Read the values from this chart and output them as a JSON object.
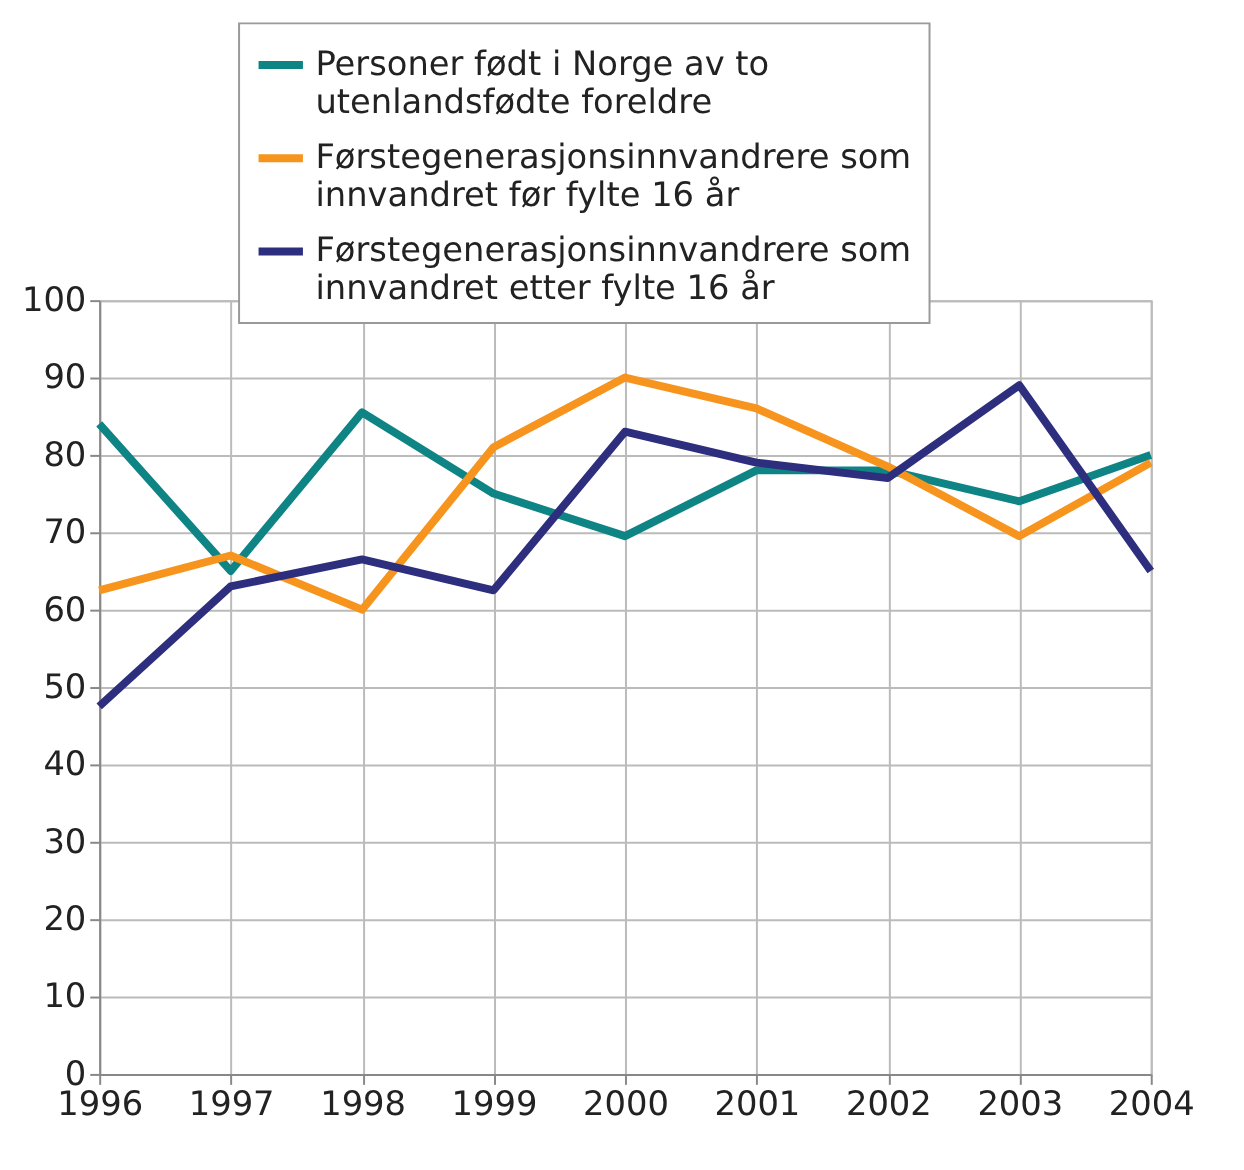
{
  "chart_data": {
    "type": "line",
    "x": [
      1996,
      1997,
      1998,
      1999,
      2000,
      2001,
      2002,
      2003,
      2004
    ],
    "series": [
      {
        "name": "Personer født i Norge av to utenlandsfødte foreldre",
        "color": "#0f8484",
        "values": [
          84,
          65,
          85.5,
          75,
          69.5,
          78,
          78,
          74,
          80
        ]
      },
      {
        "name": "Førstegenerasjonsinnvandrere som innvandret før fylte 16 år",
        "color": "#f7941d",
        "values": [
          62.5,
          67,
          60,
          81,
          90,
          86,
          78.5,
          69.5,
          79
        ]
      },
      {
        "name": "Førstegenerasjonsinnvandrere som innvandret etter fylte 16 år",
        "color": "#2e2e7e",
        "values": [
          47.5,
          63,
          66.5,
          62.5,
          83,
          79,
          77,
          89,
          65
        ]
      }
    ],
    "xlim": [
      1996,
      2004
    ],
    "xticks": [
      1996,
      1997,
      1998,
      1999,
      2000,
      2001,
      2002,
      2003,
      2004
    ],
    "ylim": [
      0,
      100
    ],
    "yticks": [
      0,
      10,
      20,
      30,
      40,
      50,
      60,
      70,
      80,
      90,
      100
    ],
    "grid": true,
    "legend": "top",
    "marker": "none",
    "line_style": "solid"
  }
}
